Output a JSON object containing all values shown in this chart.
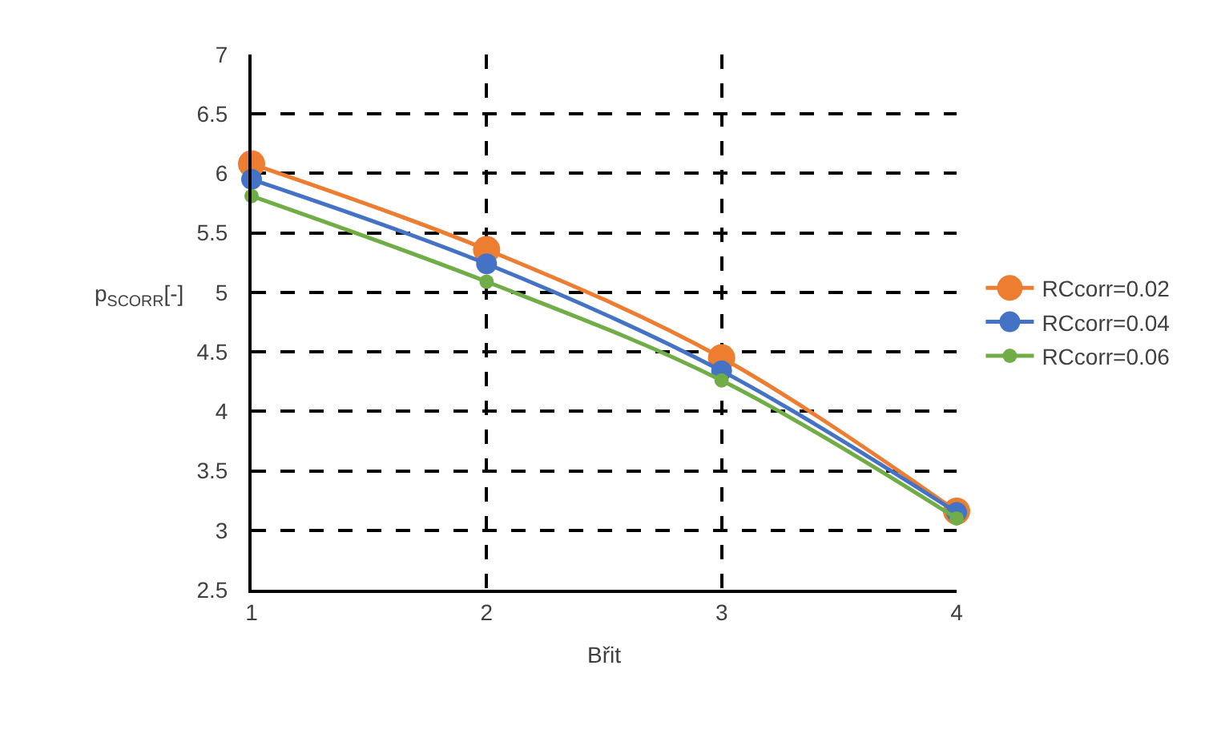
{
  "chart_data": {
    "type": "line",
    "xlabel": "Břit",
    "ylabel": "p$_{SCORR}$[-]",
    "x": [
      1,
      2,
      3,
      4
    ],
    "series": [
      {
        "name": "RCcorr=0.02",
        "color": "#ed7d31",
        "values": [
          6.08,
          5.36,
          4.45,
          3.16
        ]
      },
      {
        "name": "RCcorr=0.04",
        "color": "#4472c4",
        "values": [
          5.95,
          5.24,
          4.34,
          3.15
        ]
      },
      {
        "name": "RCcorr=0.06",
        "color": "#70ad47",
        "values": [
          5.81,
          5.09,
          4.26,
          3.1
        ]
      }
    ],
    "xlim": [
      1,
      4
    ],
    "xticks": [
      1,
      2,
      3,
      4
    ],
    "ylim": [
      2.5,
      7
    ],
    "yticks": [
      2.5,
      3,
      3.5,
      4,
      4.5,
      5,
      5.5,
      6,
      6.5,
      7
    ],
    "grid": true,
    "legend": "right",
    "marker": "circle",
    "line_style": "solid"
  }
}
